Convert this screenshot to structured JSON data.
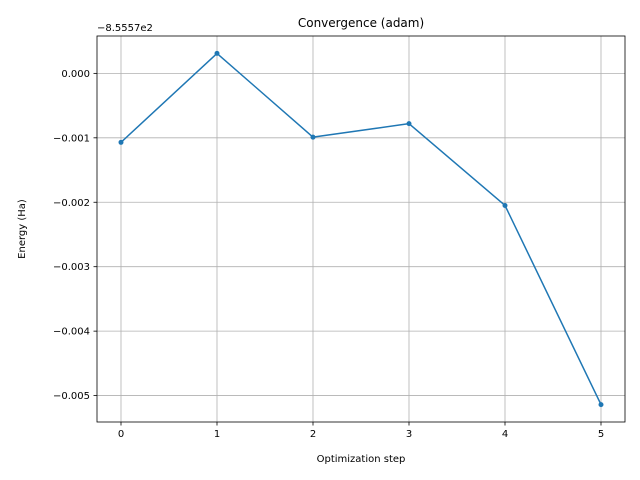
{
  "chart_data": {
    "type": "line",
    "title": "Convergence (adam)",
    "xlabel": "Optimization step",
    "ylabel": "Energy (Ha)",
    "offset_label": "−8.5557e2",
    "x": [
      0,
      1,
      2,
      3,
      4,
      5
    ],
    "series": [
      {
        "values": [
          -0.00107,
          0.00031,
          -0.00099,
          -0.00078,
          -0.00205,
          -0.00514
        ]
      }
    ],
    "xticks": [
      0,
      1,
      2,
      3,
      4,
      5
    ],
    "xtick_labels": [
      "0",
      "1",
      "2",
      "3",
      "4",
      "5"
    ],
    "yticks": [
      0.0,
      -0.001,
      -0.002,
      -0.003,
      -0.004,
      -0.005
    ],
    "ytick_labels": [
      "0.000",
      "−0.001",
      "−0.002",
      "−0.003",
      "−0.004",
      "−0.005"
    ],
    "xlim": [
      -0.25,
      5.25
    ],
    "ylim": [
      -0.00541,
      0.00058
    ],
    "grid": true,
    "marker": "circle",
    "colors": {
      "line": "#1f77b4",
      "grid": "#b0b0b0",
      "axes": "#000000"
    }
  }
}
